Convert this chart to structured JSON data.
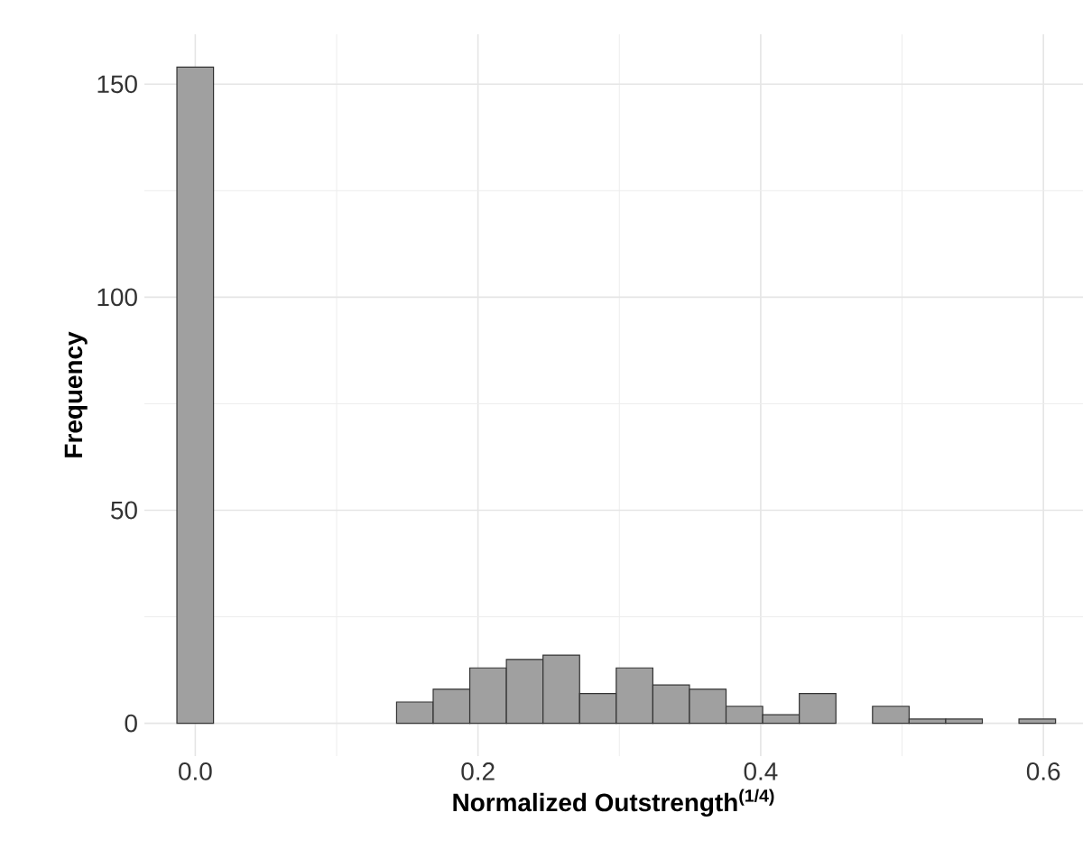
{
  "chart_data": {
    "type": "histogram",
    "xlabel": "Normalized Outstrength$^{(1/4)}$",
    "ylabel": "Frequency",
    "bins": [
      -0.013,
      0.0129,
      0.0388,
      0.0647,
      0.0906,
      0.1165,
      0.1424,
      0.1683,
      0.1942,
      0.2201,
      0.246,
      0.2719,
      0.2978,
      0.3237,
      0.3496,
      0.3755,
      0.4014,
      0.4273,
      0.4532,
      0.4791,
      0.505,
      0.5309,
      0.5568,
      0.5827,
      0.6086
    ],
    "values": [
      154,
      0,
      0,
      0,
      0,
      0,
      5,
      8,
      13,
      15,
      16,
      7,
      13,
      9,
      8,
      4,
      2,
      7,
      0,
      4,
      1,
      1,
      0,
      1
    ],
    "color": "#a0a0a0",
    "xlim": [
      -0.036,
      0.628
    ],
    "ylim": [
      -7.7,
      161.7
    ],
    "xticks": [
      {
        "value": 0,
        "label": "0.0"
      },
      0.2,
      0.4,
      0.6
    ],
    "yticks": [
      0,
      50,
      100,
      150
    ],
    "grid": true
  }
}
